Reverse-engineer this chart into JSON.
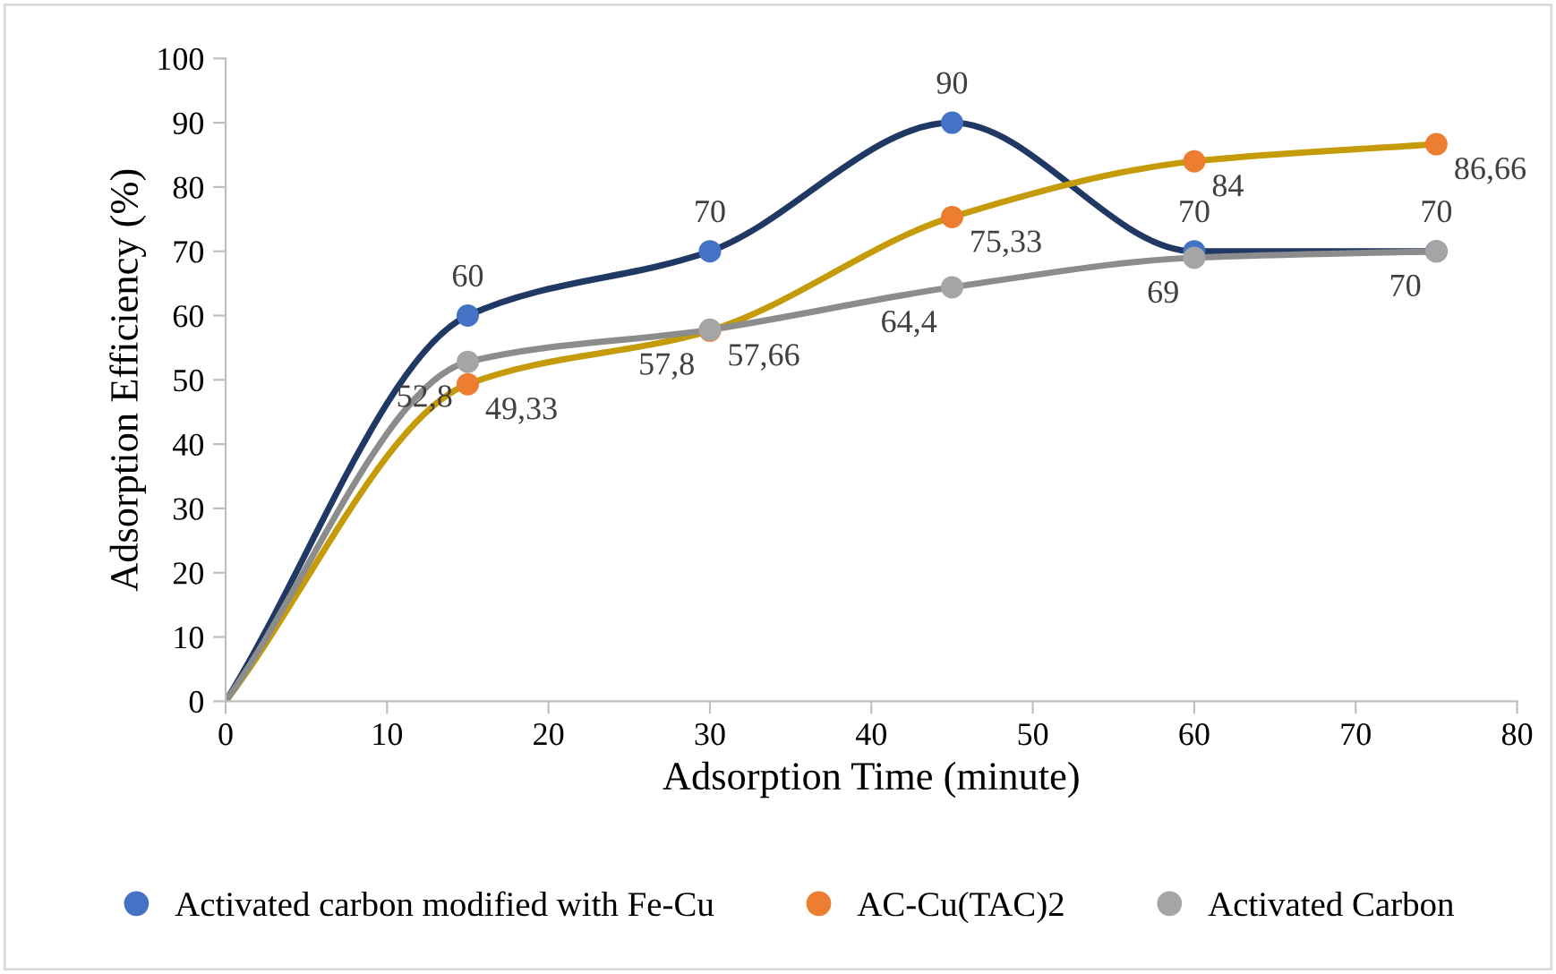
{
  "chart_data": {
    "type": "line",
    "xlabel": "Adsorption Time (minute)",
    "ylabel": "Adsorption Efficiency (%)",
    "x": [
      0,
      15,
      30,
      45,
      60,
      75
    ],
    "series": [
      {
        "name": "Activated carbon modified with Fe-Cu",
        "color": "#1f3864",
        "colors": [
          null,
          "#4472c4",
          "#4472c4",
          "#4472c4",
          "#4472c4",
          "#4472c4"
        ],
        "values": [
          0,
          60,
          70,
          90,
          70,
          70
        ],
        "value_labels": [
          null,
          "60",
          "70",
          "90",
          "70",
          "70"
        ]
      },
      {
        "name": "AC-Cu(TAC)2",
        "color": "#c59b0a",
        "colors": [
          null,
          "#ed7d31",
          "#ed7d31",
          "#ed7d31",
          "#ed7d31",
          "#ed7d31"
        ],
        "values": [
          0,
          49.33,
          57.66,
          75.33,
          84,
          86.66
        ],
        "value_labels": [
          null,
          "49,33",
          "57,66",
          "75,33",
          "84",
          "86,66"
        ]
      },
      {
        "name": "Activated Carbon",
        "color": "#8c8c8c",
        "colors": [
          null,
          "#a5a5a5",
          "#a5a5a5",
          "#a5a5a5",
          "#a5a5a5",
          "#a5a5a5"
        ],
        "values": [
          0,
          52.8,
          57.8,
          64.4,
          69,
          70
        ],
        "value_labels": [
          null,
          "52,8",
          "57,8",
          "64,4",
          "69",
          "70"
        ]
      }
    ],
    "xlim": [
      0,
      80
    ],
    "xticks": [
      0,
      10,
      20,
      30,
      40,
      50,
      60,
      70,
      80
    ],
    "ylim": [
      0,
      100
    ],
    "yticks": [
      0,
      10,
      20,
      30,
      40,
      50,
      60,
      70,
      80,
      90,
      100
    ],
    "grid": false,
    "legend": "bottom",
    "marker": "circle",
    "line_style": "solid"
  }
}
